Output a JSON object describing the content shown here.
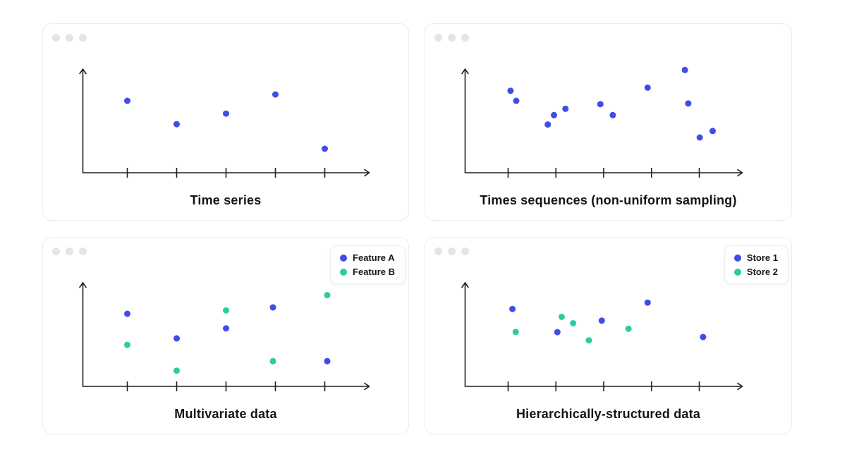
{
  "colors": {
    "point_blue": "#3E4DE8",
    "point_green": "#2BCD9E",
    "axis": "#1e1e1e",
    "panel_border": "#e9edf4",
    "window_control_dot": "#e1e6ed",
    "title_text": "#141414",
    "background": "#ffffff"
  },
  "chart_data": [
    {
      "type": "scatter",
      "title": "Time series",
      "xlabel": "",
      "ylabel": "",
      "x_ticks": [
        1,
        2,
        3,
        4,
        5
      ],
      "xlim": [
        0.1,
        5.9
      ],
      "ylim": [
        0,
        100
      ],
      "grid": false,
      "legend": null,
      "series": [
        {
          "color": "#3E4DE8",
          "points": [
            [
              1,
              69.4
            ],
            [
              2,
              46.9
            ],
            [
              3,
              57.1
            ],
            [
              4,
              75.5
            ],
            [
              5,
              23.1
            ]
          ]
        }
      ]
    },
    {
      "type": "scatter",
      "title": "Times sequences (non-uniform sampling)",
      "xlabel": "",
      "ylabel": "",
      "x_ticks": [
        1,
        2,
        3,
        4,
        5
      ],
      "xlim": [
        0.1,
        5.9
      ],
      "ylim": [
        0,
        100
      ],
      "grid": false,
      "legend": null,
      "series": [
        {
          "color": "#3E4DE8",
          "points": [
            [
              1.05,
              79.1
            ],
            [
              1.17,
              69.4
            ],
            [
              1.83,
              46.5
            ],
            [
              1.96,
              55.6
            ],
            [
              2.2,
              61.7
            ],
            [
              2.93,
              66.2
            ],
            [
              3.19,
              55.6
            ],
            [
              3.92,
              82.1
            ],
            [
              4.7,
              99.1
            ],
            [
              4.77,
              66.9
            ],
            [
              5.01,
              34.0
            ],
            [
              5.28,
              40.3
            ]
          ]
        }
      ]
    },
    {
      "type": "scatter",
      "title": "Multivariate data",
      "xlabel": "",
      "ylabel": "",
      "x_ticks": [
        1,
        2,
        3,
        4,
        5
      ],
      "xlim": [
        0.1,
        5.9
      ],
      "ylim": [
        0,
        100
      ],
      "grid": false,
      "legend": {
        "position": "top-right"
      },
      "series": [
        {
          "name": "Feature A",
          "color": "#3E4DE8",
          "points": [
            [
              1,
              70.1
            ],
            [
              2,
              46.3
            ],
            [
              3,
              56.0
            ],
            [
              3.95,
              76.2
            ],
            [
              5.05,
              24.3
            ]
          ]
        },
        {
          "name": "Feature B",
          "color": "#2BCD9E",
          "points": [
            [
              1,
              40.1
            ],
            [
              2,
              15.2
            ],
            [
              3,
              73.3
            ],
            [
              3.95,
              24.3
            ],
            [
              5.05,
              88.0
            ]
          ]
        }
      ]
    },
    {
      "type": "scatter",
      "title": "Hierarchically-structured data",
      "xlabel": "",
      "ylabel": "",
      "x_ticks": [
        1,
        2,
        3,
        4,
        5
      ],
      "xlim": [
        0.1,
        5.9
      ],
      "ylim": [
        0,
        100
      ],
      "grid": false,
      "legend": {
        "position": "top-right"
      },
      "series": [
        {
          "name": "Store 1",
          "color": "#3E4DE8",
          "points": [
            [
              1.09,
              74.7
            ],
            [
              2.03,
              52.3
            ],
            [
              2.96,
              63.5
            ],
            [
              3.92,
              80.8
            ],
            [
              5.08,
              47.6
            ]
          ]
        },
        {
          "name": "Store 2",
          "color": "#2BCD9E",
          "points": [
            [
              1.16,
              52.5
            ],
            [
              2.12,
              67.1
            ],
            [
              2.36,
              60.9
            ],
            [
              2.69,
              44.4
            ],
            [
              3.52,
              55.6
            ]
          ]
        }
      ]
    }
  ]
}
